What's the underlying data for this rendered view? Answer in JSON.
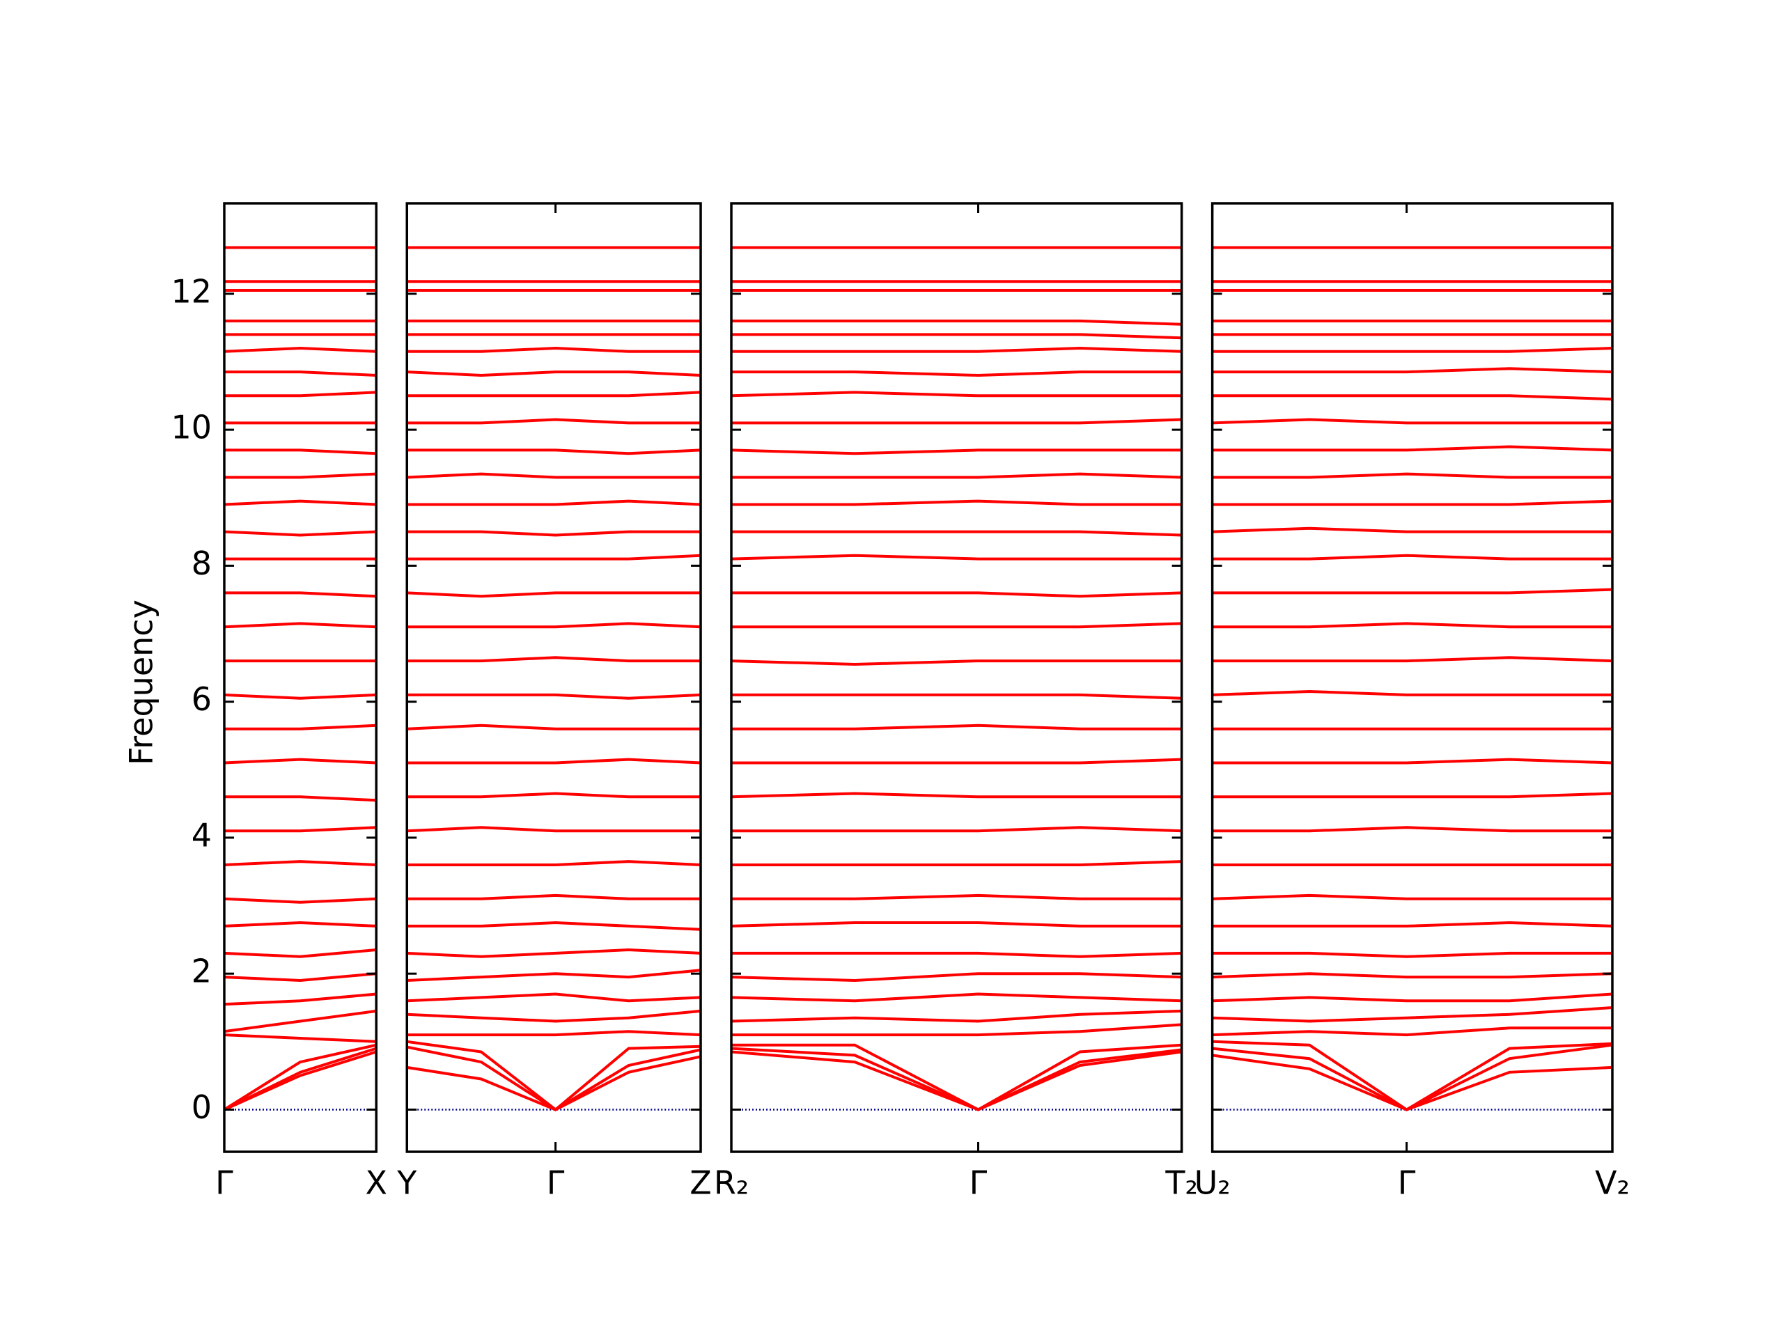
{
  "chart_data": {
    "type": "line",
    "ylabel": "Frequency",
    "ylim": [
      -0.62,
      13.33
    ],
    "yticks": [
      0,
      2,
      4,
      6,
      8,
      10,
      12
    ],
    "color": "#ff0000",
    "zero_line": {
      "value": 0,
      "color": "#00008b"
    },
    "panels": [
      {
        "xlim": [
          0,
          1.33
        ],
        "xticks": [
          {
            "value": 0,
            "label": "Γ"
          },
          {
            "value": 1.33,
            "label": "X"
          }
        ],
        "x": [
          0,
          0.665,
          1.33
        ],
        "bands": [
          [
            0,
            0.5,
            0.85
          ],
          [
            0,
            0.55,
            0.9
          ],
          [
            0,
            0.7,
            0.95
          ],
          [
            1.1,
            1.05,
            1.0
          ],
          [
            1.15,
            1.3,
            1.45
          ],
          [
            1.55,
            1.6,
            1.7
          ],
          [
            1.95,
            1.9,
            2.0
          ],
          [
            2.3,
            2.25,
            2.35
          ],
          [
            2.7,
            2.75,
            2.7
          ],
          [
            3.1,
            3.05,
            3.1
          ],
          [
            3.6,
            3.65,
            3.6
          ],
          [
            4.1,
            4.1,
            4.15
          ],
          [
            4.6,
            4.6,
            4.55
          ],
          [
            5.1,
            5.15,
            5.1
          ],
          [
            5.6,
            5.6,
            5.65
          ],
          [
            6.1,
            6.05,
            6.1
          ],
          [
            6.6,
            6.6,
            6.6
          ],
          [
            7.1,
            7.15,
            7.1
          ],
          [
            7.6,
            7.6,
            7.55
          ],
          [
            8.1,
            8.1,
            8.1
          ],
          [
            8.5,
            8.45,
            8.5
          ],
          [
            8.9,
            8.95,
            8.9
          ],
          [
            9.3,
            9.3,
            9.35
          ],
          [
            9.7,
            9.7,
            9.65
          ],
          [
            10.1,
            10.1,
            10.1
          ],
          [
            10.5,
            10.5,
            10.55
          ],
          [
            10.85,
            10.85,
            10.8
          ],
          [
            11.15,
            11.2,
            11.15
          ],
          [
            11.4,
            11.4,
            11.4
          ],
          [
            11.6,
            11.6,
            11.6
          ],
          [
            12.05,
            12.05,
            12.05
          ],
          [
            12.18,
            12.18,
            12.18
          ],
          [
            12.68,
            12.68,
            12.68
          ]
        ]
      },
      {
        "xlim": [
          0,
          2.57
        ],
        "xticks": [
          {
            "value": 0,
            "label": "Y"
          },
          {
            "value": 1.3,
            "label": "Γ"
          },
          {
            "value": 2.57,
            "label": "Z"
          }
        ],
        "x": [
          0,
          0.65,
          1.3,
          1.94,
          2.57
        ],
        "bands": [
          [
            0.62,
            0.45,
            0,
            0.55,
            0.78
          ],
          [
            0.92,
            0.7,
            0,
            0.65,
            0.88
          ],
          [
            1.0,
            0.85,
            0,
            0.9,
            0.93
          ],
          [
            1.1,
            1.1,
            1.1,
            1.15,
            1.1
          ],
          [
            1.4,
            1.35,
            1.3,
            1.35,
            1.45
          ],
          [
            1.6,
            1.65,
            1.7,
            1.6,
            1.65
          ],
          [
            1.9,
            1.95,
            2.0,
            1.95,
            2.05
          ],
          [
            2.3,
            2.25,
            2.3,
            2.35,
            2.3
          ],
          [
            2.7,
            2.7,
            2.75,
            2.7,
            2.65
          ],
          [
            3.1,
            3.1,
            3.15,
            3.1,
            3.1
          ],
          [
            3.6,
            3.6,
            3.6,
            3.65,
            3.6
          ],
          [
            4.1,
            4.15,
            4.1,
            4.1,
            4.1
          ],
          [
            4.6,
            4.6,
            4.65,
            4.6,
            4.6
          ],
          [
            5.1,
            5.1,
            5.1,
            5.15,
            5.1
          ],
          [
            5.6,
            5.65,
            5.6,
            5.6,
            5.6
          ],
          [
            6.1,
            6.1,
            6.1,
            6.05,
            6.1
          ],
          [
            6.6,
            6.6,
            6.65,
            6.6,
            6.6
          ],
          [
            7.1,
            7.1,
            7.1,
            7.15,
            7.1
          ],
          [
            7.6,
            7.55,
            7.6,
            7.6,
            7.6
          ],
          [
            8.1,
            8.1,
            8.1,
            8.1,
            8.15
          ],
          [
            8.5,
            8.5,
            8.45,
            8.5,
            8.5
          ],
          [
            8.9,
            8.9,
            8.9,
            8.95,
            8.9
          ],
          [
            9.3,
            9.35,
            9.3,
            9.3,
            9.3
          ],
          [
            9.7,
            9.7,
            9.7,
            9.65,
            9.7
          ],
          [
            10.1,
            10.1,
            10.15,
            10.1,
            10.1
          ],
          [
            10.5,
            10.5,
            10.5,
            10.5,
            10.55
          ],
          [
            10.85,
            10.8,
            10.85,
            10.85,
            10.8
          ],
          [
            11.15,
            11.15,
            11.2,
            11.15,
            11.15
          ],
          [
            11.4,
            11.4,
            11.4,
            11.4,
            11.4
          ],
          [
            11.6,
            11.6,
            11.6,
            11.6,
            11.6
          ],
          [
            12.05,
            12.05,
            12.05,
            12.05,
            12.05
          ],
          [
            12.18,
            12.18,
            12.18,
            12.18,
            12.18
          ],
          [
            12.68,
            12.68,
            12.68,
            12.68,
            12.68
          ]
        ]
      },
      {
        "xlim": [
          0,
          3.94
        ],
        "xticks": [
          {
            "value": 0,
            "label": "R₂"
          },
          {
            "value": 2.16,
            "label": "Γ"
          },
          {
            "value": 3.94,
            "label": "T₂"
          }
        ],
        "x": [
          0,
          1.08,
          2.16,
          3.05,
          3.94
        ],
        "bands": [
          [
            0.85,
            0.7,
            0,
            0.65,
            0.85
          ],
          [
            0.9,
            0.8,
            0,
            0.7,
            0.88
          ],
          [
            0.95,
            0.95,
            0,
            0.85,
            0.95
          ],
          [
            1.1,
            1.1,
            1.1,
            1.15,
            1.25
          ],
          [
            1.3,
            1.35,
            1.3,
            1.4,
            1.45
          ],
          [
            1.65,
            1.6,
            1.7,
            1.65,
            1.6
          ],
          [
            1.95,
            1.9,
            2.0,
            2.0,
            1.95
          ],
          [
            2.3,
            2.3,
            2.3,
            2.25,
            2.3
          ],
          [
            2.7,
            2.75,
            2.75,
            2.7,
            2.7
          ],
          [
            3.1,
            3.1,
            3.15,
            3.1,
            3.1
          ],
          [
            3.6,
            3.6,
            3.6,
            3.6,
            3.65
          ],
          [
            4.1,
            4.1,
            4.1,
            4.15,
            4.1
          ],
          [
            4.6,
            4.65,
            4.6,
            4.6,
            4.6
          ],
          [
            5.1,
            5.1,
            5.1,
            5.1,
            5.15
          ],
          [
            5.6,
            5.6,
            5.65,
            5.6,
            5.6
          ],
          [
            6.1,
            6.1,
            6.1,
            6.1,
            6.05
          ],
          [
            6.6,
            6.55,
            6.6,
            6.6,
            6.6
          ],
          [
            7.1,
            7.1,
            7.1,
            7.1,
            7.15
          ],
          [
            7.6,
            7.6,
            7.6,
            7.55,
            7.6
          ],
          [
            8.1,
            8.15,
            8.1,
            8.1,
            8.1
          ],
          [
            8.5,
            8.5,
            8.5,
            8.5,
            8.45
          ],
          [
            8.9,
            8.9,
            8.95,
            8.9,
            8.9
          ],
          [
            9.3,
            9.3,
            9.3,
            9.35,
            9.3
          ],
          [
            9.7,
            9.65,
            9.7,
            9.7,
            9.7
          ],
          [
            10.1,
            10.1,
            10.1,
            10.1,
            10.15
          ],
          [
            10.5,
            10.55,
            10.5,
            10.5,
            10.5
          ],
          [
            10.85,
            10.85,
            10.8,
            10.85,
            10.85
          ],
          [
            11.15,
            11.15,
            11.15,
            11.2,
            11.15
          ],
          [
            11.4,
            11.4,
            11.4,
            11.4,
            11.35
          ],
          [
            11.6,
            11.6,
            11.6,
            11.6,
            11.55
          ],
          [
            12.05,
            12.05,
            12.05,
            12.05,
            12.05
          ],
          [
            12.18,
            12.18,
            12.18,
            12.18,
            12.18
          ],
          [
            12.68,
            12.68,
            12.68,
            12.68,
            12.68
          ]
        ]
      },
      {
        "xlim": [
          0,
          3.5
        ],
        "xticks": [
          {
            "value": 0,
            "label": "U₂"
          },
          {
            "value": 1.7,
            "label": "Γ"
          },
          {
            "value": 3.5,
            "label": "V₂"
          }
        ],
        "x": [
          0,
          0.85,
          1.7,
          2.6,
          3.5
        ],
        "bands": [
          [
            0.8,
            0.6,
            0,
            0.55,
            0.62
          ],
          [
            0.9,
            0.75,
            0,
            0.75,
            0.95
          ],
          [
            1.0,
            0.95,
            0,
            0.9,
            0.97
          ],
          [
            1.1,
            1.15,
            1.1,
            1.2,
            1.2
          ],
          [
            1.35,
            1.3,
            1.35,
            1.4,
            1.5
          ],
          [
            1.6,
            1.65,
            1.6,
            1.6,
            1.7
          ],
          [
            1.95,
            2.0,
            1.95,
            1.95,
            2.0
          ],
          [
            2.3,
            2.3,
            2.25,
            2.3,
            2.3
          ],
          [
            2.7,
            2.7,
            2.7,
            2.75,
            2.7
          ],
          [
            3.1,
            3.15,
            3.1,
            3.1,
            3.1
          ],
          [
            3.6,
            3.6,
            3.6,
            3.6,
            3.6
          ],
          [
            4.1,
            4.1,
            4.15,
            4.1,
            4.1
          ],
          [
            4.6,
            4.6,
            4.6,
            4.6,
            4.65
          ],
          [
            5.1,
            5.1,
            5.1,
            5.15,
            5.1
          ],
          [
            5.6,
            5.6,
            5.6,
            5.6,
            5.6
          ],
          [
            6.1,
            6.15,
            6.1,
            6.1,
            6.1
          ],
          [
            6.6,
            6.6,
            6.6,
            6.65,
            6.6
          ],
          [
            7.1,
            7.1,
            7.15,
            7.1,
            7.1
          ],
          [
            7.6,
            7.6,
            7.6,
            7.6,
            7.65
          ],
          [
            8.1,
            8.1,
            8.15,
            8.1,
            8.1
          ],
          [
            8.5,
            8.55,
            8.5,
            8.5,
            8.5
          ],
          [
            8.9,
            8.9,
            8.9,
            8.9,
            8.95
          ],
          [
            9.3,
            9.3,
            9.35,
            9.3,
            9.3
          ],
          [
            9.7,
            9.7,
            9.7,
            9.75,
            9.7
          ],
          [
            10.1,
            10.15,
            10.1,
            10.1,
            10.1
          ],
          [
            10.5,
            10.5,
            10.5,
            10.5,
            10.45
          ],
          [
            10.85,
            10.85,
            10.85,
            10.9,
            10.85
          ],
          [
            11.15,
            11.15,
            11.15,
            11.15,
            11.2
          ],
          [
            11.4,
            11.4,
            11.4,
            11.4,
            11.4
          ],
          [
            11.6,
            11.6,
            11.6,
            11.6,
            11.6
          ],
          [
            12.05,
            12.05,
            12.05,
            12.05,
            12.05
          ],
          [
            12.18,
            12.18,
            12.18,
            12.18,
            12.18
          ],
          [
            12.68,
            12.68,
            12.68,
            12.68,
            12.68
          ]
        ]
      }
    ]
  }
}
